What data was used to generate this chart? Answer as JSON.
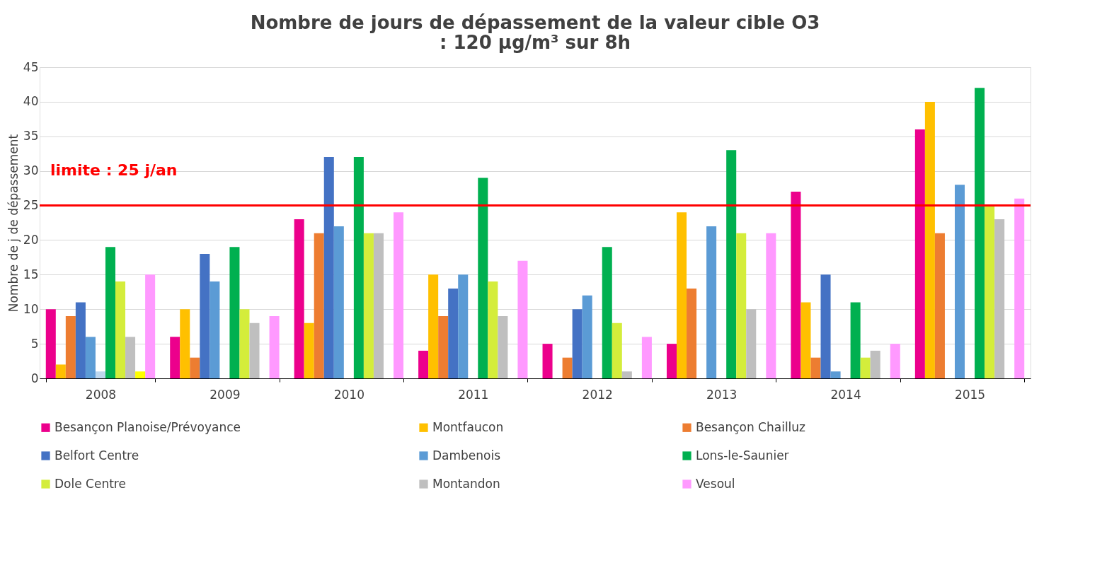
{
  "chart_data": {
    "type": "bar",
    "title": [
      "Nombre de jours de dépassement de la valeur cible O3",
      ": 120 µg/m³ sur 8h"
    ],
    "ylabel": "Nombre de j de dépassement",
    "categories": [
      "2008",
      "2009",
      "2010",
      "2011",
      "2012",
      "2013",
      "2014",
      "2015"
    ],
    "series": [
      {
        "name": "Besançon Planoise/Prévoyance",
        "color": "#ec008c",
        "values": [
          10,
          6,
          23,
          4,
          5,
          5,
          27,
          36
        ]
      },
      {
        "name": "Montfaucon",
        "color": "#ffc000",
        "values": [
          2,
          10,
          8,
          15,
          null,
          24,
          11,
          40
        ]
      },
      {
        "name": "Besançon Chailluz",
        "color": "#ed7d31",
        "values": [
          9,
          3,
          21,
          9,
          3,
          13,
          3,
          21
        ]
      },
      {
        "name": "Belfort Centre",
        "color": "#4472c4",
        "values": [
          11,
          18,
          32,
          13,
          10,
          null,
          15,
          null
        ]
      },
      {
        "name": "Dambenois",
        "color": "#5b9bd5",
        "values": [
          6,
          14,
          22,
          15,
          12,
          22,
          1,
          28
        ]
      },
      {
        "color": "#bdd7ee",
        "values": [
          1,
          null,
          null,
          null,
          null,
          null,
          null,
          null
        ]
      },
      {
        "name": "Lons-le-Saunier",
        "color": "#00b050",
        "values": [
          19,
          19,
          32,
          29,
          19,
          33,
          11,
          42
        ]
      },
      {
        "name": "Dole Centre",
        "color": "#d4ed3b",
        "values": [
          14,
          10,
          21,
          14,
          8,
          21,
          3,
          25
        ]
      },
      {
        "name": "Montandon",
        "color": "#bfbfbf",
        "values": [
          6,
          8,
          21,
          9,
          1,
          10,
          4,
          23
        ]
      },
      {
        "color": "#ffff00",
        "values": [
          1,
          null,
          null,
          null,
          null,
          null,
          null,
          null
        ]
      },
      {
        "name": "Vesoul",
        "color": "#ff99ff",
        "values": [
          15,
          9,
          24,
          17,
          6,
          21,
          5,
          26
        ]
      }
    ],
    "ylim": [
      0,
      45
    ],
    "yticks": [
      0,
      5,
      10,
      15,
      20,
      25,
      30,
      35,
      40,
      45
    ],
    "grid": "y",
    "legend": "bottom",
    "ref_lines": [
      {
        "axis": "y",
        "value": 25,
        "label": "limite : 25 j/an",
        "color": "#ff0000"
      }
    ]
  }
}
